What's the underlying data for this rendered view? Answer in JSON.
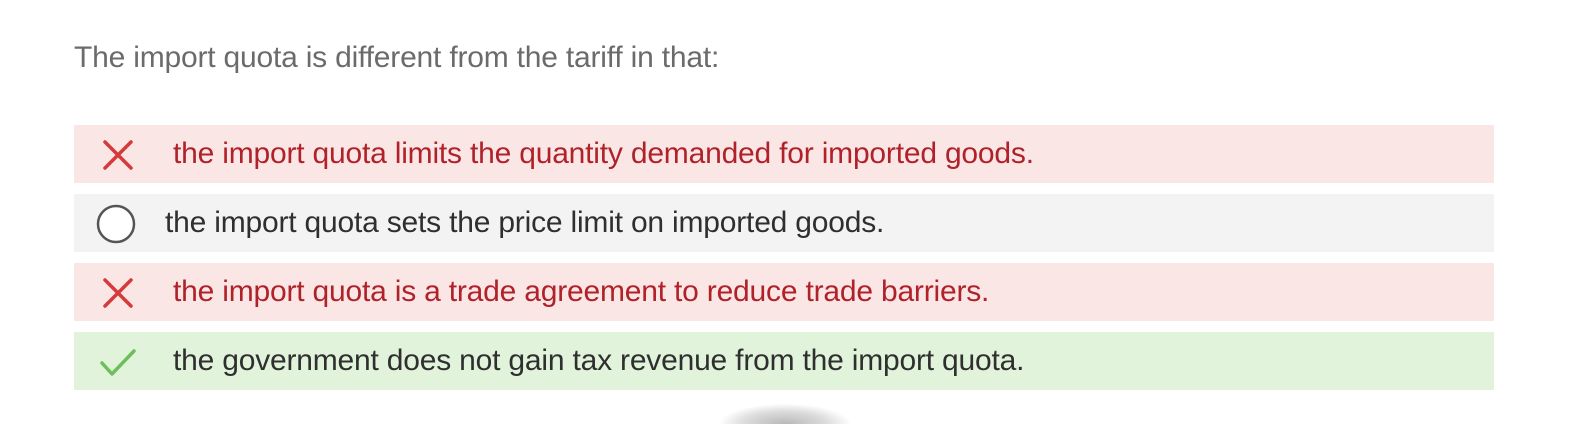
{
  "question": {
    "text": "The import quota is different from the tariff in that:"
  },
  "options": [
    {
      "text": "the import quota limits the quantity demanded for imported goods.",
      "state": "incorrect",
      "icon": "cross-icon",
      "color": "#b0222a",
      "background": "#fbe6e6"
    },
    {
      "text": "the import quota sets the price limit on imported goods.",
      "state": "unselected",
      "icon": "radio-circle-icon",
      "color": "#2f2f2f",
      "background": "#f3f3f3"
    },
    {
      "text": "the import quota is a trade agreement to reduce trade barriers.",
      "state": "incorrect",
      "icon": "cross-icon",
      "color": "#b0222a",
      "background": "#fbe6e6"
    },
    {
      "text": "the government does not gain tax revenue from the import quota.",
      "state": "correct",
      "icon": "checkmark-icon",
      "color": "#2f2f2f",
      "background": "#e1f3db"
    }
  ],
  "colors": {
    "incorrect_icon": "#d63a3a",
    "correct_icon": "#6cbf5a",
    "radio_border": "#555555",
    "question_text": "#6b6b6b"
  }
}
